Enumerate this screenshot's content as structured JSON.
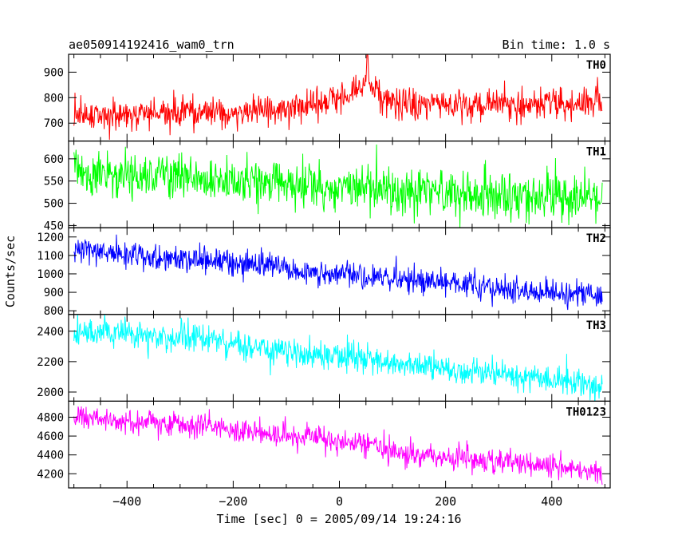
{
  "header": {
    "title": "ae050914192416_wam0_trn",
    "bin_time": "Bin time: 1.0 s"
  },
  "chart_data": {
    "type": "line",
    "ylabel": "Counts/sec",
    "xlabel": "Time [sec] 0 = 2005/09/14 19:24:16",
    "xlim": [
      -510,
      510
    ],
    "x_ticks": [
      -400,
      -200,
      0,
      200,
      400
    ],
    "x_tick_labels": [
      "−400",
      "−200",
      "0",
      "200",
      "400"
    ],
    "series_x_range": [
      -500,
      495
    ],
    "bin_time_s": 1.0,
    "panels": [
      {
        "name": "TH0",
        "color": "#ff0000",
        "ylim": [
          630,
          970
        ],
        "yticks": [
          700,
          800,
          900
        ],
        "trend": [
          [
            -500,
            730
          ],
          [
            -300,
            740
          ],
          [
            -150,
            750
          ],
          [
            -50,
            775
          ],
          [
            20,
            810
          ],
          [
            45,
            850
          ],
          [
            52,
            935
          ],
          [
            60,
            840
          ],
          [
            85,
            780
          ],
          [
            200,
            770
          ],
          [
            495,
            785
          ]
        ],
        "noise_sd": 30,
        "peak_max": 970
      },
      {
        "name": "TH1",
        "color": "#00ff00",
        "ylim": [
          445,
          640
        ],
        "yticks": [
          450,
          500,
          550,
          600
        ],
        "trend": [
          [
            -500,
            565
          ],
          [
            -300,
            557
          ],
          [
            0,
            535
          ],
          [
            200,
            525
          ],
          [
            495,
            510
          ]
        ],
        "noise_sd": 26
      },
      {
        "name": "TH2",
        "color": "#0000ff",
        "ylim": [
          780,
          1250
        ],
        "yticks": [
          800,
          900,
          1000,
          1100,
          1200
        ],
        "trend": [
          [
            -500,
            1125
          ],
          [
            -300,
            1080
          ],
          [
            -100,
            1040
          ],
          [
            -90,
            1010
          ],
          [
            100,
            980
          ],
          [
            300,
            920
          ],
          [
            495,
            875
          ]
        ],
        "noise_sd": 35
      },
      {
        "name": "TH3",
        "color": "#00ffff",
        "ylim": [
          1940,
          2510
        ],
        "yticks": [
          2000,
          2200,
          2400
        ],
        "trend": [
          [
            -500,
            2410
          ],
          [
            -300,
            2360
          ],
          [
            0,
            2230
          ],
          [
            200,
            2150
          ],
          [
            495,
            2040
          ]
        ],
        "noise_sd": 48
      },
      {
        "name": "TH0123",
        "color": "#ff00ff",
        "ylim": [
          4050,
          4970
        ],
        "yticks": [
          4200,
          4400,
          4600,
          4800
        ],
        "trend": [
          [
            -500,
            4800
          ],
          [
            -300,
            4720
          ],
          [
            -100,
            4610
          ],
          [
            0,
            4550
          ],
          [
            70,
            4510
          ],
          [
            90,
            4440
          ],
          [
            300,
            4330
          ],
          [
            495,
            4230
          ]
        ],
        "noise_sd": 65
      }
    ]
  }
}
